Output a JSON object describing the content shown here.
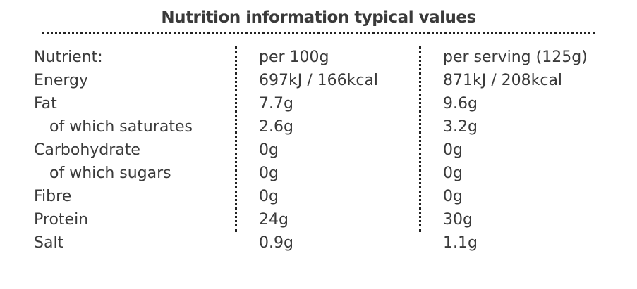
{
  "title": "Nutrition information typical values",
  "table": {
    "header": [
      "Nutrient:",
      "per 100g",
      "per serving (125g)"
    ],
    "rows": [
      [
        "Energy",
        "697kJ / 166kcal",
        "871kJ / 208kcal"
      ],
      [
        "Fat",
        "7.7g",
        "9.6g"
      ],
      [
        "of which saturates",
        "2.6g",
        "3.2g"
      ],
      [
        "Carbohydrate",
        "0g",
        "0g"
      ],
      [
        "of which sugars",
        "0g",
        "0g"
      ],
      [
        "Fibre",
        "0g",
        "0g"
      ],
      [
        "Protein",
        "24g",
        "30g"
      ],
      [
        "Salt",
        "0.9g",
        "1.1g"
      ]
    ]
  }
}
